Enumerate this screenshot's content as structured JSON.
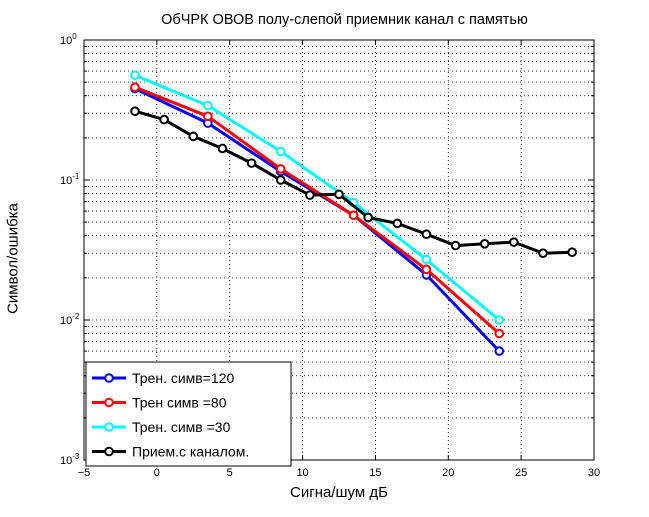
{
  "chart_data": {
    "type": "line",
    "title": "ОбЧРК ОВОВ полу-слепой приемник канал с памятью",
    "xlabel": "Сигна/шум дБ",
    "ylabel": "Символ/ошибка",
    "xlim": [
      -5,
      30
    ],
    "ylim": [
      0.001,
      1
    ],
    "yscale": "log",
    "grid": true,
    "legend_position": "bottom-left",
    "x_ticks": [
      "−5",
      "0",
      "5",
      "10",
      "15",
      "20",
      "25",
      "30"
    ],
    "y_ticks": [
      {
        "base": "10",
        "exp": "0"
      },
      {
        "base": "10",
        "exp": "-1"
      },
      {
        "base": "10",
        "exp": "-2"
      },
      {
        "base": "10",
        "exp": "-3"
      }
    ],
    "series": [
      {
        "name": "Трен. симв=120",
        "color": "#0000ff",
        "x": [
          -1.5,
          3.5,
          8.5,
          13.5,
          18.5,
          23.5
        ],
        "y": [
          0.45,
          0.255,
          0.115,
          0.056,
          0.021,
          0.006
        ]
      },
      {
        "name": "Трен симв =80",
        "color": "#ff0000",
        "x": [
          -1.5,
          3.5,
          8.5,
          13.5,
          18.5,
          23.5
        ],
        "y": [
          0.46,
          0.285,
          0.12,
          0.056,
          0.023,
          0.008
        ]
      },
      {
        "name": "Трен. симв =30",
        "color": "#00ffff",
        "x": [
          -1.5,
          3.5,
          8.5,
          13.5,
          18.5,
          23.5
        ],
        "y": [
          0.56,
          0.34,
          0.16,
          0.069,
          0.027,
          0.01
        ]
      },
      {
        "name": "Прием.с каналом.",
        "color": "#000000",
        "x": [
          -1.5,
          0.5,
          2.5,
          4.5,
          6.5,
          8.5,
          10.5,
          12.5,
          14.5,
          16.5,
          18.5,
          20.5,
          22.5,
          24.5,
          26.5,
          28.5
        ],
        "y": [
          0.31,
          0.27,
          0.205,
          0.168,
          0.132,
          0.1,
          0.078,
          0.079,
          0.054,
          0.049,
          0.041,
          0.034,
          0.035,
          0.036,
          0.03,
          0.0305
        ]
      }
    ]
  }
}
